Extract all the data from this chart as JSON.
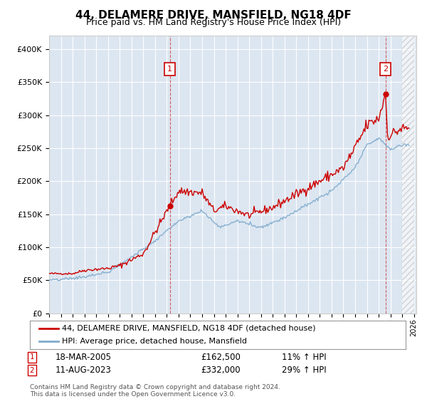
{
  "title": "44, DELAMERE DRIVE, MANSFIELD, NG18 4DF",
  "subtitle": "Price paid vs. HM Land Registry's House Price Index (HPI)",
  "ylim": [
    0,
    420000
  ],
  "yticks": [
    0,
    50000,
    100000,
    150000,
    200000,
    250000,
    300000,
    350000,
    400000
  ],
  "ytick_labels": [
    "£0",
    "£50K",
    "£100K",
    "£150K",
    "£200K",
    "£250K",
    "£300K",
    "£350K",
    "£400K"
  ],
  "plot_bg_color": "#dce6f1",
  "outer_bg_color": "#ffffff",
  "red_line_color": "#cc0000",
  "blue_line_color": "#7faacc",
  "marker1_price": 162500,
  "marker2_price": 332000,
  "marker1_year": 2005.25,
  "marker2_year": 2023.583,
  "legend_line1": "44, DELAMERE DRIVE, MANSFIELD, NG18 4DF (detached house)",
  "legend_line2": "HPI: Average price, detached house, Mansfield",
  "note1_date": "18-MAR-2005",
  "note1_price": "£162,500",
  "note1_hpi": "11% ↑ HPI",
  "note2_date": "11-AUG-2023",
  "note2_price": "£332,000",
  "note2_hpi": "29% ↑ HPI",
  "footer": "Contains HM Land Registry data © Crown copyright and database right 2024.\nThis data is licensed under the Open Government Licence v3.0."
}
